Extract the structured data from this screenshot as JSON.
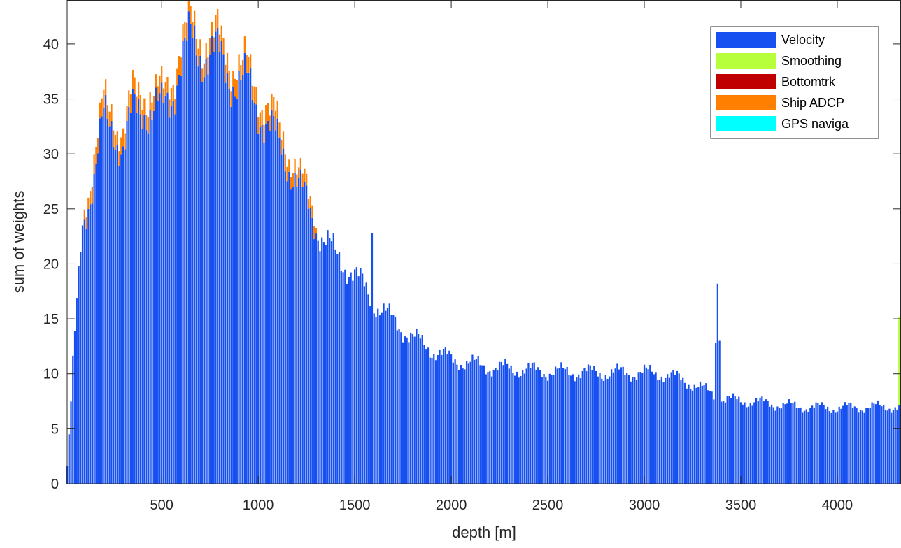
{
  "chart_data": {
    "type": "bar",
    "stacked": true,
    "xlabel": "depth [m]",
    "ylabel": "sum of weights",
    "xlim": [
      10,
      4330
    ],
    "ylim": [
      0,
      44
    ],
    "xticks": [
      500,
      1000,
      1500,
      2000,
      2500,
      3000,
      3500,
      4000
    ],
    "yticks": [
      0,
      5,
      10,
      15,
      20,
      25,
      30,
      35,
      40
    ],
    "grid": false,
    "legend_position": "top-right",
    "bin_width": 10,
    "velocity_profile": [
      [
        10,
        1.6
      ],
      [
        20,
        4.5
      ],
      [
        30,
        7.2
      ],
      [
        40,
        10.8
      ],
      [
        50,
        13.5
      ],
      [
        60,
        16.0
      ],
      [
        70,
        18.8
      ],
      [
        80,
        21.5
      ],
      [
        90,
        23.5
      ],
      [
        100,
        24.5
      ],
      [
        150,
        28.0
      ],
      [
        200,
        33.0
      ],
      [
        250,
        32.5
      ],
      [
        300,
        30.5
      ],
      [
        350,
        33.5
      ],
      [
        400,
        34.5
      ],
      [
        450,
        34.0
      ],
      [
        500,
        33.8
      ],
      [
        550,
        35.5
      ],
      [
        600,
        38.5
      ],
      [
        650,
        40.0
      ],
      [
        700,
        39.5
      ],
      [
        750,
        39.2
      ],
      [
        800,
        38.5
      ],
      [
        850,
        37.5
      ],
      [
        900,
        36.5
      ],
      [
        950,
        36.0
      ],
      [
        1000,
        34.5
      ],
      [
        1050,
        32.5
      ],
      [
        1100,
        31.0
      ],
      [
        1150,
        29.5
      ],
      [
        1200,
        27.5
      ],
      [
        1250,
        25.5
      ],
      [
        1300,
        23.5
      ],
      [
        1350,
        22.0
      ],
      [
        1400,
        20.8
      ],
      [
        1450,
        20.0
      ],
      [
        1500,
        19.0
      ],
      [
        1550,
        17.8
      ],
      [
        1600,
        16.5
      ],
      [
        1700,
        14.8
      ],
      [
        1800,
        13.3
      ],
      [
        1900,
        12.2
      ],
      [
        2000,
        11.3
      ],
      [
        2200,
        10.6
      ],
      [
        2500,
        10.2
      ],
      [
        2800,
        10.1
      ],
      [
        3000,
        10.1
      ],
      [
        3100,
        10.0
      ],
      [
        3250,
        9.1
      ],
      [
        3350,
        8.2
      ],
      [
        3400,
        7.7
      ],
      [
        3600,
        7.4
      ],
      [
        3800,
        7.0
      ],
      [
        4000,
        6.9
      ],
      [
        4200,
        7.0
      ],
      [
        4330,
        7.0
      ]
    ],
    "velocity_spikes": [
      [
        1590,
        22.8
      ],
      [
        3380,
        18.2
      ],
      [
        3370,
        12.8
      ],
      [
        3390,
        13.0
      ]
    ],
    "ship_adcp_profile": [
      [
        90,
        0
      ],
      [
        100,
        0.8
      ],
      [
        150,
        1.5
      ],
      [
        200,
        1.5
      ],
      [
        300,
        1.5
      ],
      [
        500,
        1.5
      ],
      [
        700,
        1.5
      ],
      [
        900,
        1.5
      ],
      [
        1100,
        1.5
      ],
      [
        1200,
        1.2
      ],
      [
        1290,
        1.0
      ],
      [
        1310,
        0
      ]
    ],
    "smoothing_tail": [
      [
        4320,
        8.0
      ],
      [
        4330,
        8.6
      ]
    ],
    "series": [
      {
        "name": "Velocity",
        "color": "#1750f0"
      },
      {
        "name": "Smoothing",
        "color": "#b7ff3a"
      },
      {
        "name": "Bottomtrk",
        "color": "#c00000"
      },
      {
        "name": "Ship ADCP",
        "color": "#ff8000"
      },
      {
        "name": "GPS naviga",
        "color": "#00ffff"
      }
    ]
  }
}
